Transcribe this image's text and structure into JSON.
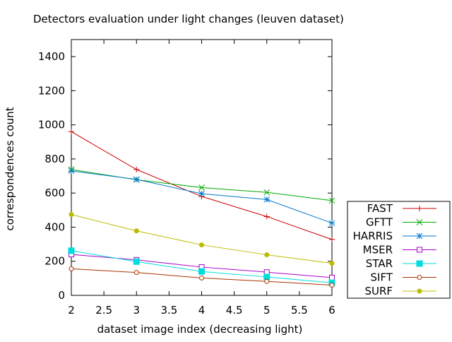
{
  "chart_data": {
    "type": "line",
    "title": "Detectors evaluation under light changes (leuven dataset)",
    "xlabel": "dataset image index (decreasing light)",
    "ylabel": "correspondences count",
    "xlim": [
      2,
      6
    ],
    "ylim": [
      0,
      1500
    ],
    "xticks": [
      2,
      2.5,
      3,
      3.5,
      4,
      4.5,
      5,
      5.5,
      6
    ],
    "yticks": [
      0,
      200,
      400,
      600,
      800,
      1000,
      1200,
      1400
    ],
    "xtick_labels": [
      "2",
      "2.5",
      "3",
      "3.5",
      "4",
      "4.5",
      "5",
      "5.5",
      "6"
    ],
    "ytick_labels": [
      "0",
      "200",
      "400",
      "600",
      "800",
      "1000",
      "1200",
      "1400"
    ],
    "grid": false,
    "legend_position": "outside-bottom-right",
    "x": [
      2,
      3,
      4,
      5,
      6
    ],
    "series": [
      {
        "name": "FAST",
        "color": "#cc0000",
        "marker": "plus",
        "values": [
          960,
          738,
          580,
          462,
          328
        ]
      },
      {
        "name": "GFTT",
        "color": "#00aa00",
        "marker": "cross",
        "values": [
          738,
          678,
          632,
          604,
          556
        ]
      },
      {
        "name": "HARRIS",
        "color": "#0077cc",
        "marker": "star",
        "values": [
          730,
          680,
          596,
          562,
          424
        ]
      },
      {
        "name": "MSER",
        "color": "#aa00cc",
        "marker": "open-square",
        "values": [
          240,
          208,
          166,
          136,
          104
        ]
      },
      {
        "name": "STAR",
        "color": "#00dddd",
        "marker": "filled-square",
        "values": [
          262,
          198,
          140,
          108,
          74
        ]
      },
      {
        "name": "SIFT",
        "color": "#aa3300",
        "marker": "open-circle",
        "values": [
          156,
          134,
          102,
          82,
          60
        ]
      },
      {
        "name": "SURF",
        "color": "#bbbb00",
        "marker": "filled-circle",
        "values": [
          474,
          378,
          296,
          238,
          188
        ]
      }
    ]
  }
}
